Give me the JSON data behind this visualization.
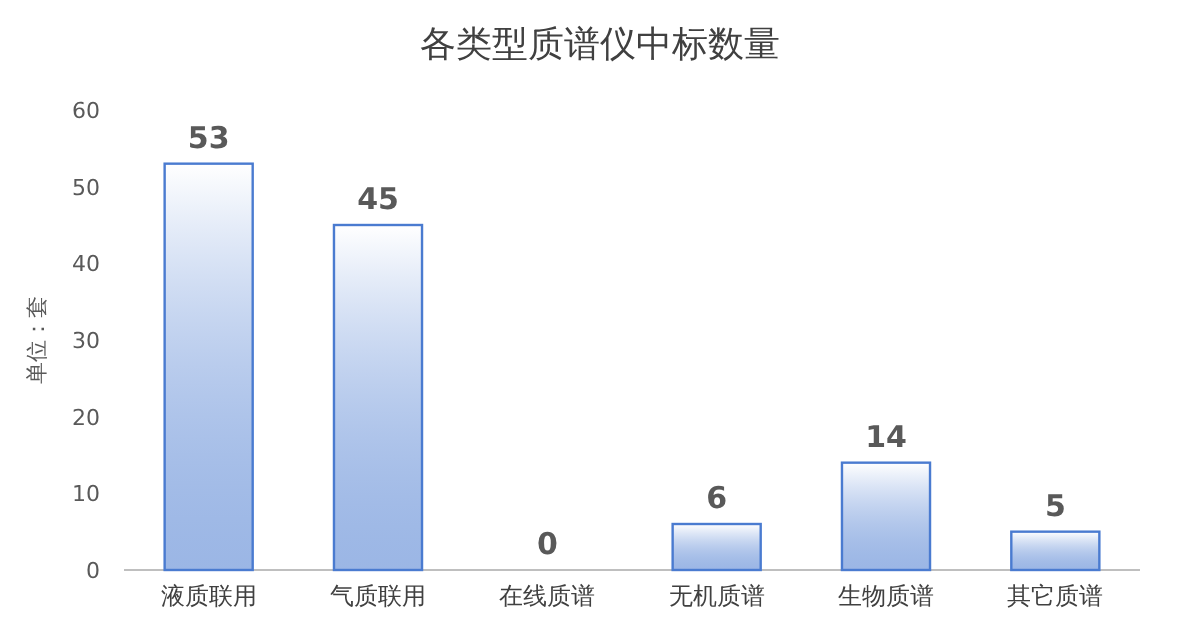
{
  "chart_data": {
    "type": "bar",
    "title": "各类型质谱仪中标数量",
    "ylabel": "单位：套",
    "categories": [
      "液质联用",
      "气质联用",
      "在线质谱",
      "无机质谱",
      "生物质谱",
      "其它质谱"
    ],
    "values": [
      53,
      45,
      0,
      6,
      14,
      5
    ],
    "color": "#4a7bd0",
    "ylim": [
      0,
      60
    ],
    "yticks": [
      0,
      10,
      20,
      30,
      40,
      50,
      60
    ],
    "data_labels": true,
    "grid": false
  }
}
